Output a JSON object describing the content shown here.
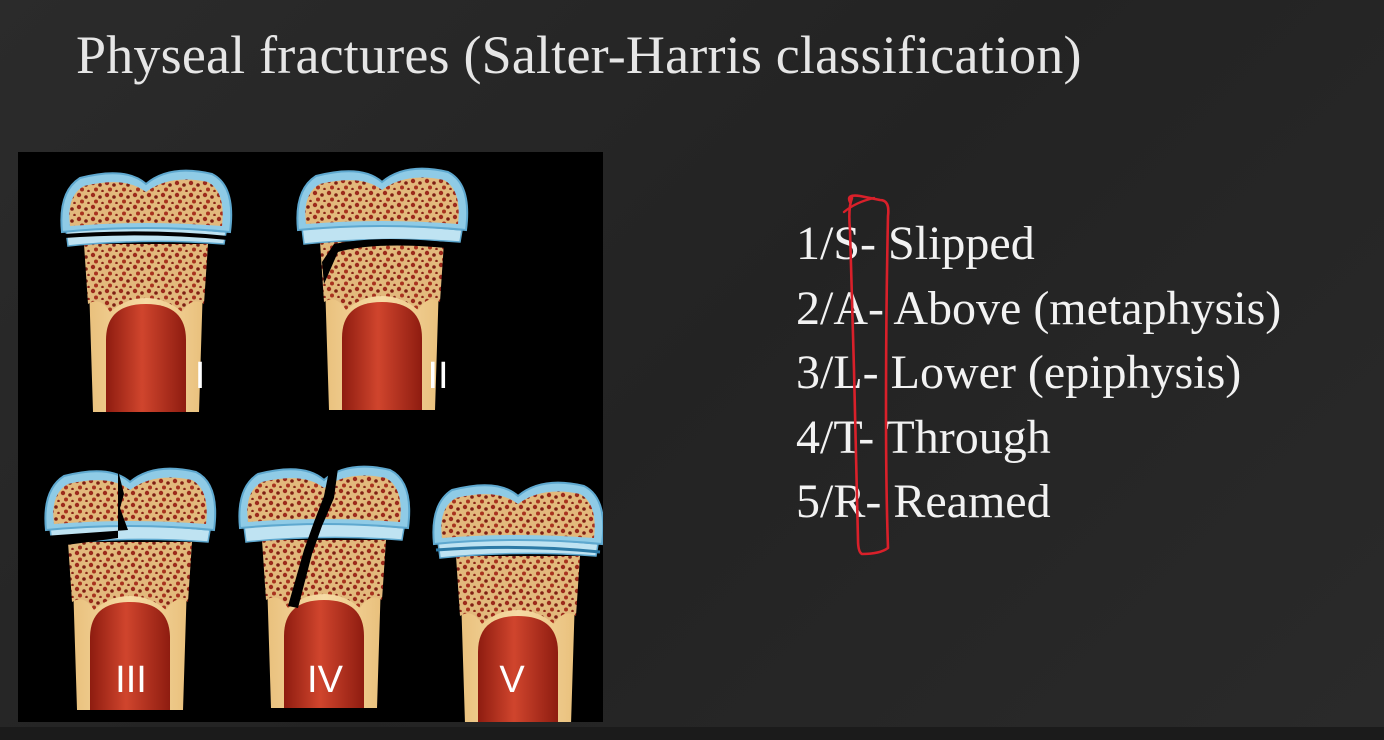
{
  "title": "Physeal fractures (Salter-Harris classification)",
  "figure": {
    "bones": [
      {
        "label": "I",
        "fracture": "through-physis"
      },
      {
        "label": "II",
        "fracture": "physis-and-metaphysis"
      },
      {
        "label": "III",
        "fracture": "physis-and-epiphysis"
      },
      {
        "label": "IV",
        "fracture": "through-metaphysis-physis-epiphysis"
      },
      {
        "label": "V",
        "fracture": "physis-compression"
      }
    ]
  },
  "mnemonic": [
    {
      "number": "1/",
      "letter": "S",
      "text": "- Slipped"
    },
    {
      "number": "2/",
      "letter": "A",
      "text": "- Above (metaphysis)"
    },
    {
      "number": "3/",
      "letter": "L",
      "text": "- Lower (epiphysis)"
    },
    {
      "number": "4/",
      "letter": "T",
      "text": "- Through"
    },
    {
      "number": "5/",
      "letter": "R",
      "text": "- Reamed"
    }
  ],
  "colors": {
    "background": "#262626",
    "title": "#e6e6e6",
    "text": "#f2f2f2",
    "annotation": "#d9202a",
    "cartilage": "#7fc4e4",
    "bone": "#f2cf8d",
    "marrow": "#b3281c"
  }
}
